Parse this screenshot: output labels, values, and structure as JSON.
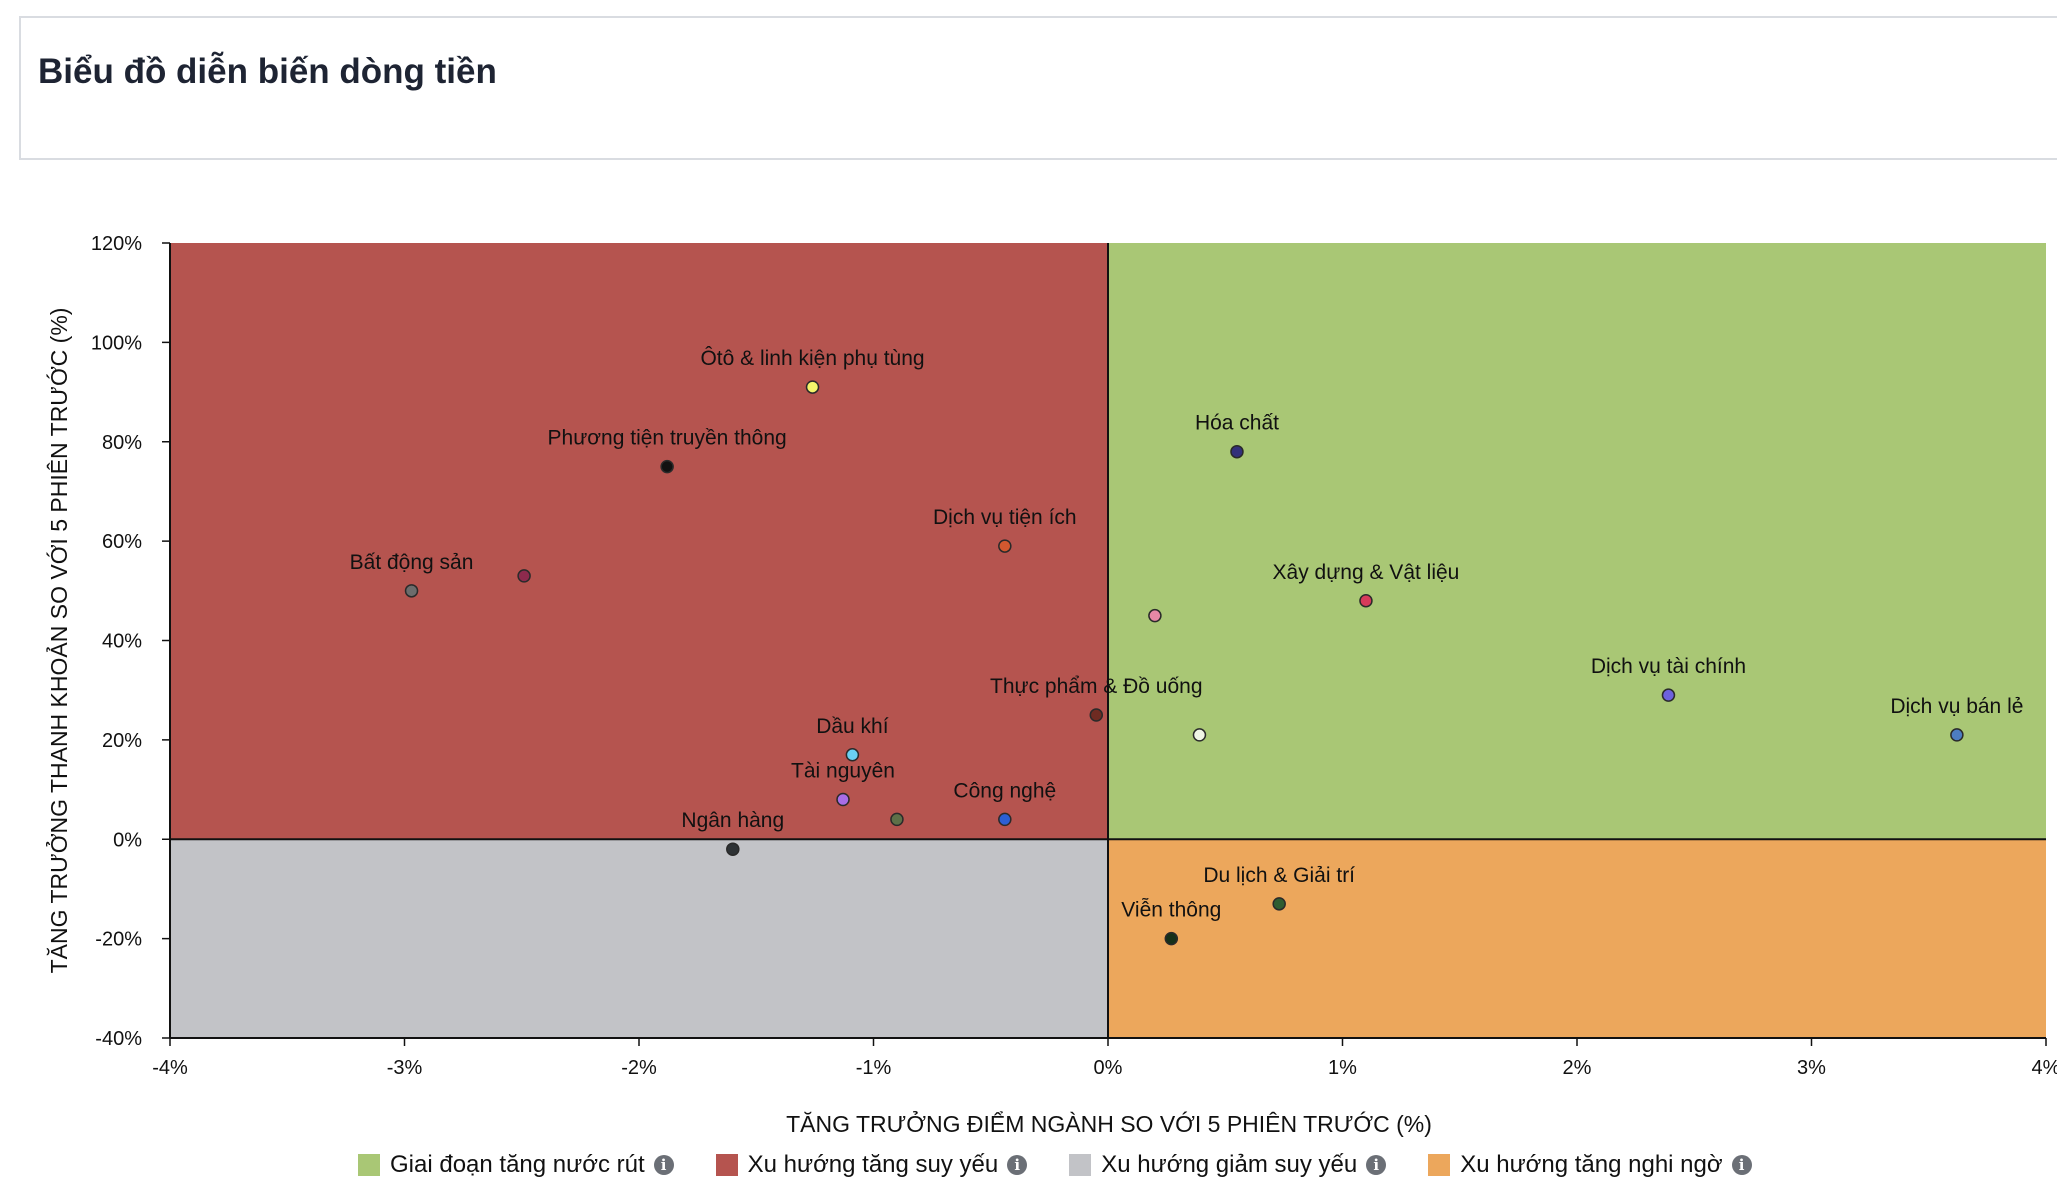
{
  "header": {
    "title": "Biểu đồ diễn biến dòng tiền"
  },
  "chart_data": {
    "type": "scatter",
    "title": "",
    "xlabel": "TĂNG TRƯỞNG ĐIỂM NGÀNH SO VỚI 5 PHIÊN TRƯỚC (%)",
    "ylabel": "TĂNG TRƯỞNG THANH KHOẢN SO VỚI 5 PHIÊN TRƯỚC (%)",
    "xlim": [
      -4,
      4
    ],
    "ylim": [
      -40,
      120
    ],
    "x_ticks": [
      -4,
      -3,
      -2,
      -1,
      0,
      1,
      2,
      3,
      4
    ],
    "x_tick_labels": [
      "-4%",
      "-3%",
      "-2%",
      "-1%",
      "0%",
      "1%",
      "2%",
      "3%",
      "4%"
    ],
    "y_ticks": [
      120,
      100,
      80,
      60,
      40,
      20,
      0,
      -20,
      -40
    ],
    "y_tick_labels": [
      "120%",
      "100%",
      "80%",
      "60%",
      "40%",
      "20%",
      "0%",
      "-20%",
      "-40%"
    ],
    "grid": false,
    "quadrants": [
      {
        "name": "Giai đoạn tăng nước rút",
        "x_range": [
          0,
          4
        ],
        "y_range": [
          0,
          120
        ],
        "color": "#a9c775"
      },
      {
        "name": "Xu hướng tăng suy yếu",
        "x_range": [
          -4,
          0
        ],
        "y_range": [
          0,
          120
        ],
        "color": "#b5544f"
      },
      {
        "name": "Xu hướng giảm suy yếu",
        "x_range": [
          -4,
          0
        ],
        "y_range": [
          -40,
          0
        ],
        "color": "#c2c3c7"
      },
      {
        "name": "Xu hướng tăng nghi ngờ",
        "x_range": [
          0,
          4
        ],
        "y_range": [
          -40,
          0
        ],
        "color": "#eca75c"
      }
    ],
    "points": [
      {
        "label": "Ôtô & linh kiện phụ tùng",
        "x": -1.26,
        "y": 91,
        "color": "#f3f56b"
      },
      {
        "label": "Phương tiện truyền thông",
        "x": -1.88,
        "y": 75,
        "color": "#111111"
      },
      {
        "label": "Dịch vụ tiện ích",
        "x": -0.44,
        "y": 59,
        "color": "#d2582f"
      },
      {
        "label": "Bất động sản",
        "x": -2.97,
        "y": 50,
        "color": "#6c6c6c"
      },
      {
        "label": "",
        "x": -2.49,
        "y": 53,
        "color": "#8d2a4d"
      },
      {
        "label": "Hóa chất",
        "x": 0.55,
        "y": 78,
        "color": "#33307a"
      },
      {
        "label": "",
        "x": 0.2,
        "y": 45,
        "color": "#e788a6"
      },
      {
        "label": "Xây dựng & Vật liệu",
        "x": 1.1,
        "y": 48,
        "color": "#d73a5b"
      },
      {
        "label": "Thực phẩm & Đồ uống",
        "x": -0.05,
        "y": 25,
        "color": "#6e2b22"
      },
      {
        "label": "",
        "x": 0.39,
        "y": 21,
        "color": "#f0f5e6"
      },
      {
        "label": "Dịch vụ tài chính",
        "x": 2.39,
        "y": 29,
        "color": "#6d62dd"
      },
      {
        "label": "Dịch vụ bán lẻ",
        "x": 3.62,
        "y": 21,
        "color": "#4d7dc2"
      },
      {
        "label": "Dầu khí",
        "x": -1.09,
        "y": 17,
        "color": "#6ad0f2"
      },
      {
        "label": "Tài nguyên",
        "x": -1.13,
        "y": 8,
        "color": "#a86de6"
      },
      {
        "label": "",
        "x": -0.9,
        "y": 4,
        "color": "#5e7048"
      },
      {
        "label": "Công nghệ",
        "x": -0.44,
        "y": 4,
        "color": "#2b5fd4"
      },
      {
        "label": "Ngân hàng",
        "x": -1.6,
        "y": -2,
        "color": "#2e3235"
      },
      {
        "label": "Du lịch & Giải trí",
        "x": 0.73,
        "y": -13,
        "color": "#2f5d31"
      },
      {
        "label": "Viễn thông",
        "x": 0.27,
        "y": -20,
        "color": "#163019"
      }
    ]
  },
  "legend": {
    "position": "bottom-center",
    "info_glyph": "i",
    "items": [
      {
        "label": "Giai đoạn tăng nước rút",
        "color": "#a9c775",
        "icon": "info-icon"
      },
      {
        "label": "Xu hướng tăng suy yếu",
        "color": "#b5544f",
        "icon": "info-icon"
      },
      {
        "label": "Xu hướng giảm suy yếu",
        "color": "#c2c3c7",
        "icon": "info-icon"
      },
      {
        "label": "Xu hướng tăng nghi ngờ",
        "color": "#eca75c",
        "icon": "info-icon"
      }
    ]
  }
}
